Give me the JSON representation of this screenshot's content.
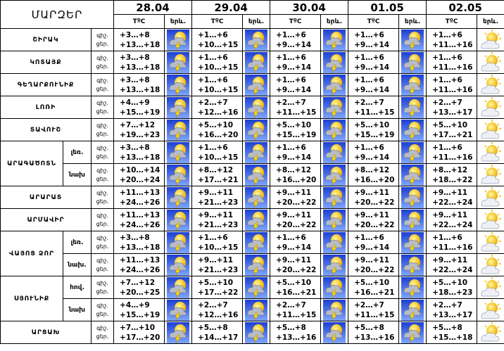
{
  "header": {
    "title": "ՄԱՐԶԵՐ",
    "dates": [
      "28.04",
      "29.04",
      "30.04",
      "01.05",
      "02.05"
    ],
    "temp_label": "TºC",
    "icon_label": "երև."
  },
  "period_labels": [
    "գիշ.",
    "ցեր."
  ],
  "regions": [
    {
      "name": "ՇԻՐԱԿ",
      "zones": [
        {
          "temps": [
            [
              "+3…+8",
              "+13…+18"
            ],
            [
              "+1…+6",
              "+10…+15"
            ],
            [
              "+1…+6",
              "+9…+14"
            ],
            [
              "+1…+6",
              "+9…+14"
            ],
            [
              "+1…+6",
              "+11…+16"
            ]
          ]
        }
      ]
    },
    {
      "name": "ԿՈՏԱՅՔ",
      "zones": [
        {
          "temps": [
            [
              "+3…+8",
              "+13…+18"
            ],
            [
              "+1…+6",
              "+10…+15"
            ],
            [
              "+1…+6",
              "+9…+14"
            ],
            [
              "+1…+6",
              "+9…+14"
            ],
            [
              "+1…+6",
              "+11…+16"
            ]
          ]
        }
      ]
    },
    {
      "name": "ԳԵՂԱՐՔՈՒՆԻՔ",
      "zones": [
        {
          "temps": [
            [
              "+3…+8",
              "+13…+18"
            ],
            [
              "+1…+6",
              "+10…+15"
            ],
            [
              "+1…+6",
              "+9…+14"
            ],
            [
              "+1…+6",
              "+9…+14"
            ],
            [
              "+1…+6",
              "+11…+16"
            ]
          ]
        }
      ]
    },
    {
      "name": "ԼՈՌԻ",
      "zones": [
        {
          "temps": [
            [
              "+4…+9",
              "+15…+19"
            ],
            [
              "+2…+7",
              "+12…+16"
            ],
            [
              "+2…+7",
              "+11…+15"
            ],
            [
              "+2…+7",
              "+11…+15"
            ],
            [
              "+2…+7",
              "+13…+17"
            ]
          ]
        }
      ]
    },
    {
      "name": "ՏԱՎՈՒՇ",
      "zones": [
        {
          "temps": [
            [
              "+7…+12",
              "+19…+23"
            ],
            [
              "+5…+10",
              "+16…+20"
            ],
            [
              "+5…+10",
              "+15…+19"
            ],
            [
              "+5…+10",
              "+15…+19"
            ],
            [
              "+5…+10",
              "+17…+21"
            ]
          ]
        }
      ]
    },
    {
      "name": "ԱՐԱԳԱԾՈՏՆ",
      "zones": [
        {
          "label": "լեռ.",
          "temps": [
            [
              "+3…+8",
              "+13…+18"
            ],
            [
              "+1…+6",
              "+10…+15"
            ],
            [
              "+1…+6",
              "+9…+14"
            ],
            [
              "+1…+6",
              "+9…+14"
            ],
            [
              "+1…+6",
              "+11…+16"
            ]
          ]
        },
        {
          "label": "նախ",
          "temps": [
            [
              "+10…+14",
              "+20…+24"
            ],
            [
              "+8…+12",
              "+17…+21"
            ],
            [
              "+8…+12",
              "+16…+20"
            ],
            [
              "+8…+12",
              "+16…+20"
            ],
            [
              "+8…+12",
              "+18…+22"
            ]
          ]
        }
      ]
    },
    {
      "name": "ԱՐԱՐԱՏ",
      "zones": [
        {
          "temps": [
            [
              "+11…+13",
              "+24…+26"
            ],
            [
              "+9…+11",
              "+21…+23"
            ],
            [
              "+9…+11",
              "+20…+22"
            ],
            [
              "+9…+11",
              "+20…+22"
            ],
            [
              "+9…+11",
              "+22…+24"
            ]
          ]
        }
      ]
    },
    {
      "name": "ԱՐՄԱՎԻՐ",
      "zones": [
        {
          "temps": [
            [
              "+11…+13",
              "+24…+26"
            ],
            [
              "+9…+11",
              "+21…+23"
            ],
            [
              "+9…+11",
              "+20…+22"
            ],
            [
              "+9…+11",
              "+20…+22"
            ],
            [
              "+9…+11",
              "+22…+24"
            ]
          ]
        }
      ]
    },
    {
      "name": "ՎԱՅՈՑ ՁՈՐ",
      "zones": [
        {
          "label": "լեռ.",
          "temps": [
            [
              "+3…+8",
              "+13…+18"
            ],
            [
              "+1…+6",
              "+10…+15"
            ],
            [
              "+1…+6",
              "+9…+14"
            ],
            [
              "+1…+6",
              "+9…+14"
            ],
            [
              "+1…+6",
              "+11…+16"
            ]
          ]
        },
        {
          "label": "նախ.",
          "temps": [
            [
              "+11…+13",
              "+24…+26"
            ],
            [
              "+9…+11",
              "+21…+23"
            ],
            [
              "+9…+11",
              "+20…+22"
            ],
            [
              "+9…+11",
              "+20…+22"
            ],
            [
              "+9…+11",
              "+22…+24"
            ]
          ]
        }
      ]
    },
    {
      "name": "ՍՅՈՒՆԻՔ",
      "zones": [
        {
          "label": "հով.",
          "temps": [
            [
              "+7…+12",
              "+20…+25"
            ],
            [
              "+5…+10",
              "+17…+22"
            ],
            [
              "+5…+10",
              "+16…+21"
            ],
            [
              "+5…+10",
              "+16…+21"
            ],
            [
              "+5…+10",
              "+18…+23"
            ]
          ]
        },
        {
          "label": "նախ",
          "temps": [
            [
              "+4…+9",
              "+15…+19"
            ],
            [
              "+2…+7",
              "+12…+16"
            ],
            [
              "+2…+7",
              "+11…+15"
            ],
            [
              "+2…+7",
              "+11…+15"
            ],
            [
              "+2…+7",
              "+13…+17"
            ]
          ]
        }
      ]
    },
    {
      "name": "ԱՐՑԱԽ",
      "zones": [
        {
          "temps": [
            [
              "+7…+10",
              "+17…+20"
            ],
            [
              "+5…+8",
              "+14…+17"
            ],
            [
              "+5…+8",
              "+13…+16"
            ],
            [
              "+5…+8",
              "+13…+16"
            ],
            [
              "+5…+8",
              "+15…+18"
            ]
          ]
        }
      ]
    }
  ]
}
